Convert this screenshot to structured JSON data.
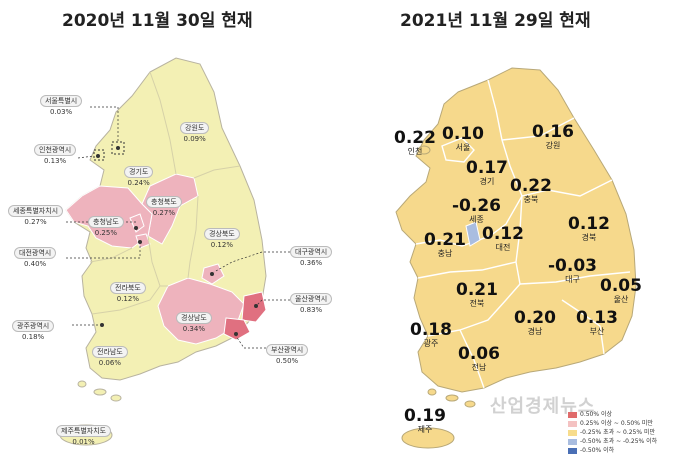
{
  "titles": {
    "left": "2020년 11월 30일 현재",
    "right": "2021년 11월 29일 현재"
  },
  "left_map": {
    "regions": [
      {
        "name": "서울특별시",
        "value": "0.03%"
      },
      {
        "name": "인천광역시",
        "value": "0.13%"
      },
      {
        "name": "경기도",
        "value": "0.24%"
      },
      {
        "name": "강원도",
        "value": "0.09%"
      },
      {
        "name": "충청북도",
        "value": "0.27%"
      },
      {
        "name": "세종특별자치시",
        "value": "0.27%"
      },
      {
        "name": "충청남도",
        "value": "0.25%"
      },
      {
        "name": "대전광역시",
        "value": "0.40%"
      },
      {
        "name": "경상북도",
        "value": "0.12%"
      },
      {
        "name": "대구광역시",
        "value": "0.36%"
      },
      {
        "name": "전라북도",
        "value": "0.12%"
      },
      {
        "name": "경상남도",
        "value": "0.34%"
      },
      {
        "name": "울산광역시",
        "value": "0.83%"
      },
      {
        "name": "광주광역시",
        "value": "0.18%"
      },
      {
        "name": "전라남도",
        "value": "0.06%"
      },
      {
        "name": "부산광역시",
        "value": "0.50%"
      },
      {
        "name": "제주특별자치도",
        "value": "0.01%"
      }
    ]
  },
  "right_map": {
    "regions": [
      {
        "name": "인천",
        "value": "0.22"
      },
      {
        "name": "서울",
        "value": "0.10"
      },
      {
        "name": "강원",
        "value": "0.16"
      },
      {
        "name": "경기",
        "value": "0.17"
      },
      {
        "name": "충북",
        "value": "0.22"
      },
      {
        "name": "세종",
        "value": "-0.26"
      },
      {
        "name": "충남",
        "value": "0.21"
      },
      {
        "name": "대전",
        "value": "0.12"
      },
      {
        "name": "경북",
        "value": "0.12"
      },
      {
        "name": "대구",
        "value": "-0.03"
      },
      {
        "name": "울산",
        "value": "0.05"
      },
      {
        "name": "전북",
        "value": "0.21"
      },
      {
        "name": "광주",
        "value": "0.18"
      },
      {
        "name": "경남",
        "value": "0.20"
      },
      {
        "name": "부산",
        "value": "0.13"
      },
      {
        "name": "전남",
        "value": "0.06"
      },
      {
        "name": "제주",
        "value": "0.19"
      }
    ]
  },
  "legend": [
    {
      "label": "0.50% 이상",
      "color": "#e06b6b"
    },
    {
      "label": "0.25% 이상 ~ 0.50% 미만",
      "color": "#f4c2c2"
    },
    {
      "label": "-0.25% 초과 ~ 0.25% 미만",
      "color": "#f7dc8c"
    },
    {
      "label": "-0.50% 초과 ~ -0.25% 이하",
      "color": "#a9bde0"
    },
    {
      "label": "-0.50% 이하",
      "color": "#4a6fb5"
    }
  ],
  "watermark": "산업경제뉴스",
  "colors": {
    "left_base": "#f3f0b4",
    "left_pink": "#eeb3bd",
    "left_red": "#e07080",
    "right_base": "#f6d98c",
    "right_blue": "#a9bde0",
    "border": "#ffffff",
    "outline": "#b8b3a0"
  }
}
